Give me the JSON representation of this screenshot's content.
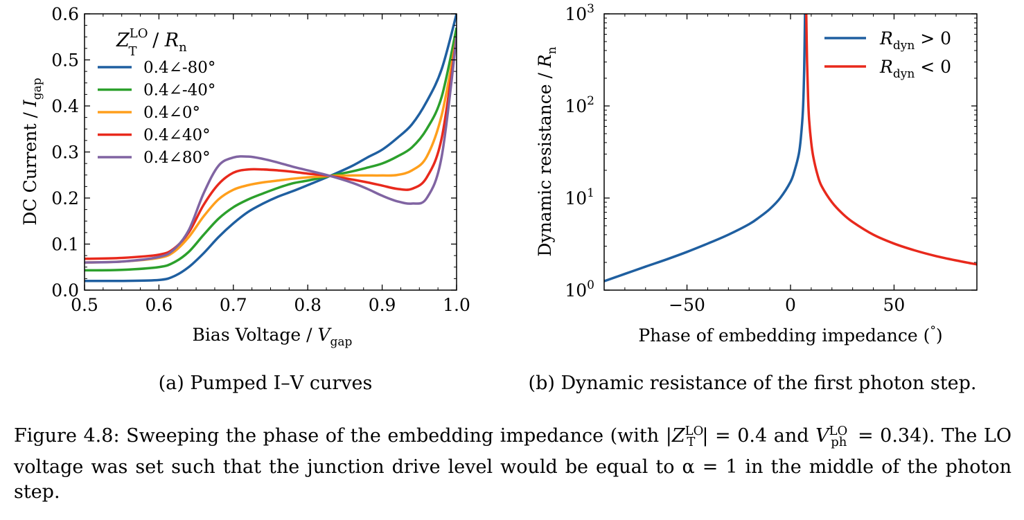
{
  "chart_data": [
    {
      "type": "line",
      "id": "a",
      "xlabel": "Bias Voltage / V_gap",
      "ylabel": "DC Current / I_gap",
      "xlim": [
        0.5,
        1.0
      ],
      "ylim": [
        0.0,
        0.6
      ],
      "xticks": [
        "0.5",
        "0.6",
        "0.7",
        "0.8",
        "0.9",
        "1.0"
      ],
      "yticks": [
        "0.0",
        "0.1",
        "0.2",
        "0.3",
        "0.4",
        "0.5",
        "0.6"
      ],
      "legend_title": "Z_T^LO / R_n",
      "legend_position": "top-left",
      "grid": false,
      "series": [
        {
          "name": "0.4∠-80°",
          "color": "#1f5fa0",
          "x": [
            0.5,
            0.55,
            0.6,
            0.62,
            0.64,
            0.66,
            0.68,
            0.7,
            0.72,
            0.74,
            0.76,
            0.78,
            0.8,
            0.83,
            0.86,
            0.88,
            0.9,
            0.92,
            0.94,
            0.96,
            0.98,
            1.0
          ],
          "y": [
            0.02,
            0.02,
            0.022,
            0.03,
            0.05,
            0.08,
            0.115,
            0.145,
            0.17,
            0.188,
            0.203,
            0.215,
            0.228,
            0.248,
            0.27,
            0.288,
            0.305,
            0.33,
            0.36,
            0.41,
            0.48,
            0.6
          ]
        },
        {
          "name": "0.4∠-40°",
          "color": "#2ca02c",
          "x": [
            0.5,
            0.55,
            0.6,
            0.62,
            0.64,
            0.66,
            0.68,
            0.7,
            0.72,
            0.74,
            0.76,
            0.78,
            0.8,
            0.83,
            0.86,
            0.88,
            0.9,
            0.92,
            0.94,
            0.96,
            0.98,
            1.0
          ],
          "y": [
            0.043,
            0.044,
            0.05,
            0.06,
            0.083,
            0.12,
            0.155,
            0.18,
            0.197,
            0.21,
            0.222,
            0.232,
            0.238,
            0.248,
            0.258,
            0.266,
            0.275,
            0.29,
            0.31,
            0.35,
            0.42,
            0.57
          ]
        },
        {
          "name": "0.4∠0°",
          "color": "#ff9f1c",
          "x": [
            0.5,
            0.55,
            0.6,
            0.62,
            0.64,
            0.66,
            0.68,
            0.7,
            0.72,
            0.74,
            0.76,
            0.78,
            0.8,
            0.83,
            0.86,
            0.88,
            0.9,
            0.92,
            0.94,
            0.96,
            0.98,
            1.0
          ],
          "y": [
            0.06,
            0.062,
            0.07,
            0.083,
            0.115,
            0.16,
            0.197,
            0.218,
            0.228,
            0.234,
            0.238,
            0.242,
            0.245,
            0.248,
            0.249,
            0.249,
            0.249,
            0.25,
            0.26,
            0.29,
            0.38,
            0.55
          ]
        },
        {
          "name": "0.4∠40°",
          "color": "#e8291c",
          "x": [
            0.5,
            0.55,
            0.6,
            0.62,
            0.64,
            0.66,
            0.68,
            0.7,
            0.72,
            0.74,
            0.76,
            0.78,
            0.8,
            0.83,
            0.86,
            0.88,
            0.9,
            0.92,
            0.94,
            0.96,
            0.98,
            1.0
          ],
          "y": [
            0.068,
            0.07,
            0.077,
            0.09,
            0.125,
            0.185,
            0.23,
            0.255,
            0.262,
            0.262,
            0.26,
            0.257,
            0.253,
            0.248,
            0.24,
            0.234,
            0.227,
            0.22,
            0.22,
            0.245,
            0.33,
            0.55
          ]
        },
        {
          "name": "0.4∠80°",
          "color": "#8064a2",
          "x": [
            0.5,
            0.55,
            0.6,
            0.62,
            0.64,
            0.66,
            0.68,
            0.7,
            0.72,
            0.74,
            0.76,
            0.78,
            0.8,
            0.83,
            0.86,
            0.88,
            0.9,
            0.92,
            0.94,
            0.96,
            0.98,
            1.0
          ],
          "y": [
            0.06,
            0.062,
            0.072,
            0.088,
            0.13,
            0.21,
            0.27,
            0.288,
            0.29,
            0.285,
            0.277,
            0.268,
            0.26,
            0.248,
            0.233,
            0.22,
            0.205,
            0.193,
            0.188,
            0.2,
            0.29,
            0.55
          ]
        }
      ]
    },
    {
      "type": "line",
      "id": "b",
      "xlabel": "Phase of embedding impedance (°)",
      "ylabel": "Dynamic resistance / R_n",
      "xlim": [
        -90,
        90
      ],
      "ylim": [
        1,
        1000
      ],
      "yscale": "log",
      "xticks": [
        "−50",
        "0",
        "50"
      ],
      "yticks": [
        "10^0",
        "10^1",
        "10^2",
        "10^3"
      ],
      "legend_position": "top-right",
      "grid": false,
      "series": [
        {
          "name": "R_dyn > 0",
          "color": "#1f5fa0",
          "x": [
            -90,
            -80,
            -70,
            -60,
            -50,
            -40,
            -30,
            -20,
            -15,
            -10,
            -5,
            0,
            2,
            4,
            5,
            6,
            6.6,
            7.0
          ],
          "y": [
            1.25,
            1.5,
            1.8,
            2.15,
            2.6,
            3.2,
            4.0,
            5.2,
            6.2,
            7.6,
            10.0,
            15.0,
            20.0,
            30.0,
            45.0,
            90.0,
            250.0,
            1000.0
          ]
        },
        {
          "name": "R_dyn < 0",
          "color": "#e8291c",
          "x": [
            7.6,
            8.0,
            8.5,
            9.0,
            10.0,
            11.0,
            13.0,
            15.0,
            20.0,
            25.0,
            30.0,
            40.0,
            50.0,
            60.0,
            70.0,
            80.0,
            90.0
          ],
          "y": [
            1000.0,
            300.0,
            120.0,
            70.0,
            40.0,
            28.0,
            18.0,
            13.5,
            9.0,
            6.8,
            5.5,
            4.0,
            3.2,
            2.7,
            2.35,
            2.1,
            1.9
          ]
        }
      ]
    }
  ],
  "captions": {
    "a": "(a) Pumped I–V curves",
    "b": "(b) Dynamic resistance of the first photon step."
  },
  "figure_caption": {
    "part1": "Figure 4.8: Sweeping the phase of the embedding impedance (with |",
    "z_symbol": "Z",
    "z_sub": "T",
    "z_sup": "LO",
    "part2": "| = 0.4 and ",
    "v_symbol": "V",
    "v_sub": "ph",
    "v_sup": "LO",
    "part3": " = 0.34). The LO voltage was set such that the junction drive level would be equal to α = 1 in the middle of the photon step."
  },
  "math": {
    "v_gap": "V",
    "v_gap_sub": "gap",
    "i_gap": "I",
    "i_gap_sub": "gap",
    "r_n": "R",
    "r_n_sub": "n",
    "z_lo": "Z",
    "z_lo_sub": "T",
    "z_lo_sup": "LO",
    "r_dyn": "R",
    "r_dyn_sub": "dyn",
    "gt0": " > 0",
    "lt0": " < 0",
    "ten": "10",
    "exp0": "0",
    "exp1": "1",
    "exp2": "2",
    "exp3": "3",
    "ylabel_a_text": "DC Current / ",
    "xlabel_a_text": "Bias Voltage / ",
    "ylabel_b_text": "Dynamic resistance / ",
    "xlabel_b_text": "Phase of embedding impedance (",
    "degree": "°",
    "xlabel_b_close": ")",
    "slash": " / "
  }
}
